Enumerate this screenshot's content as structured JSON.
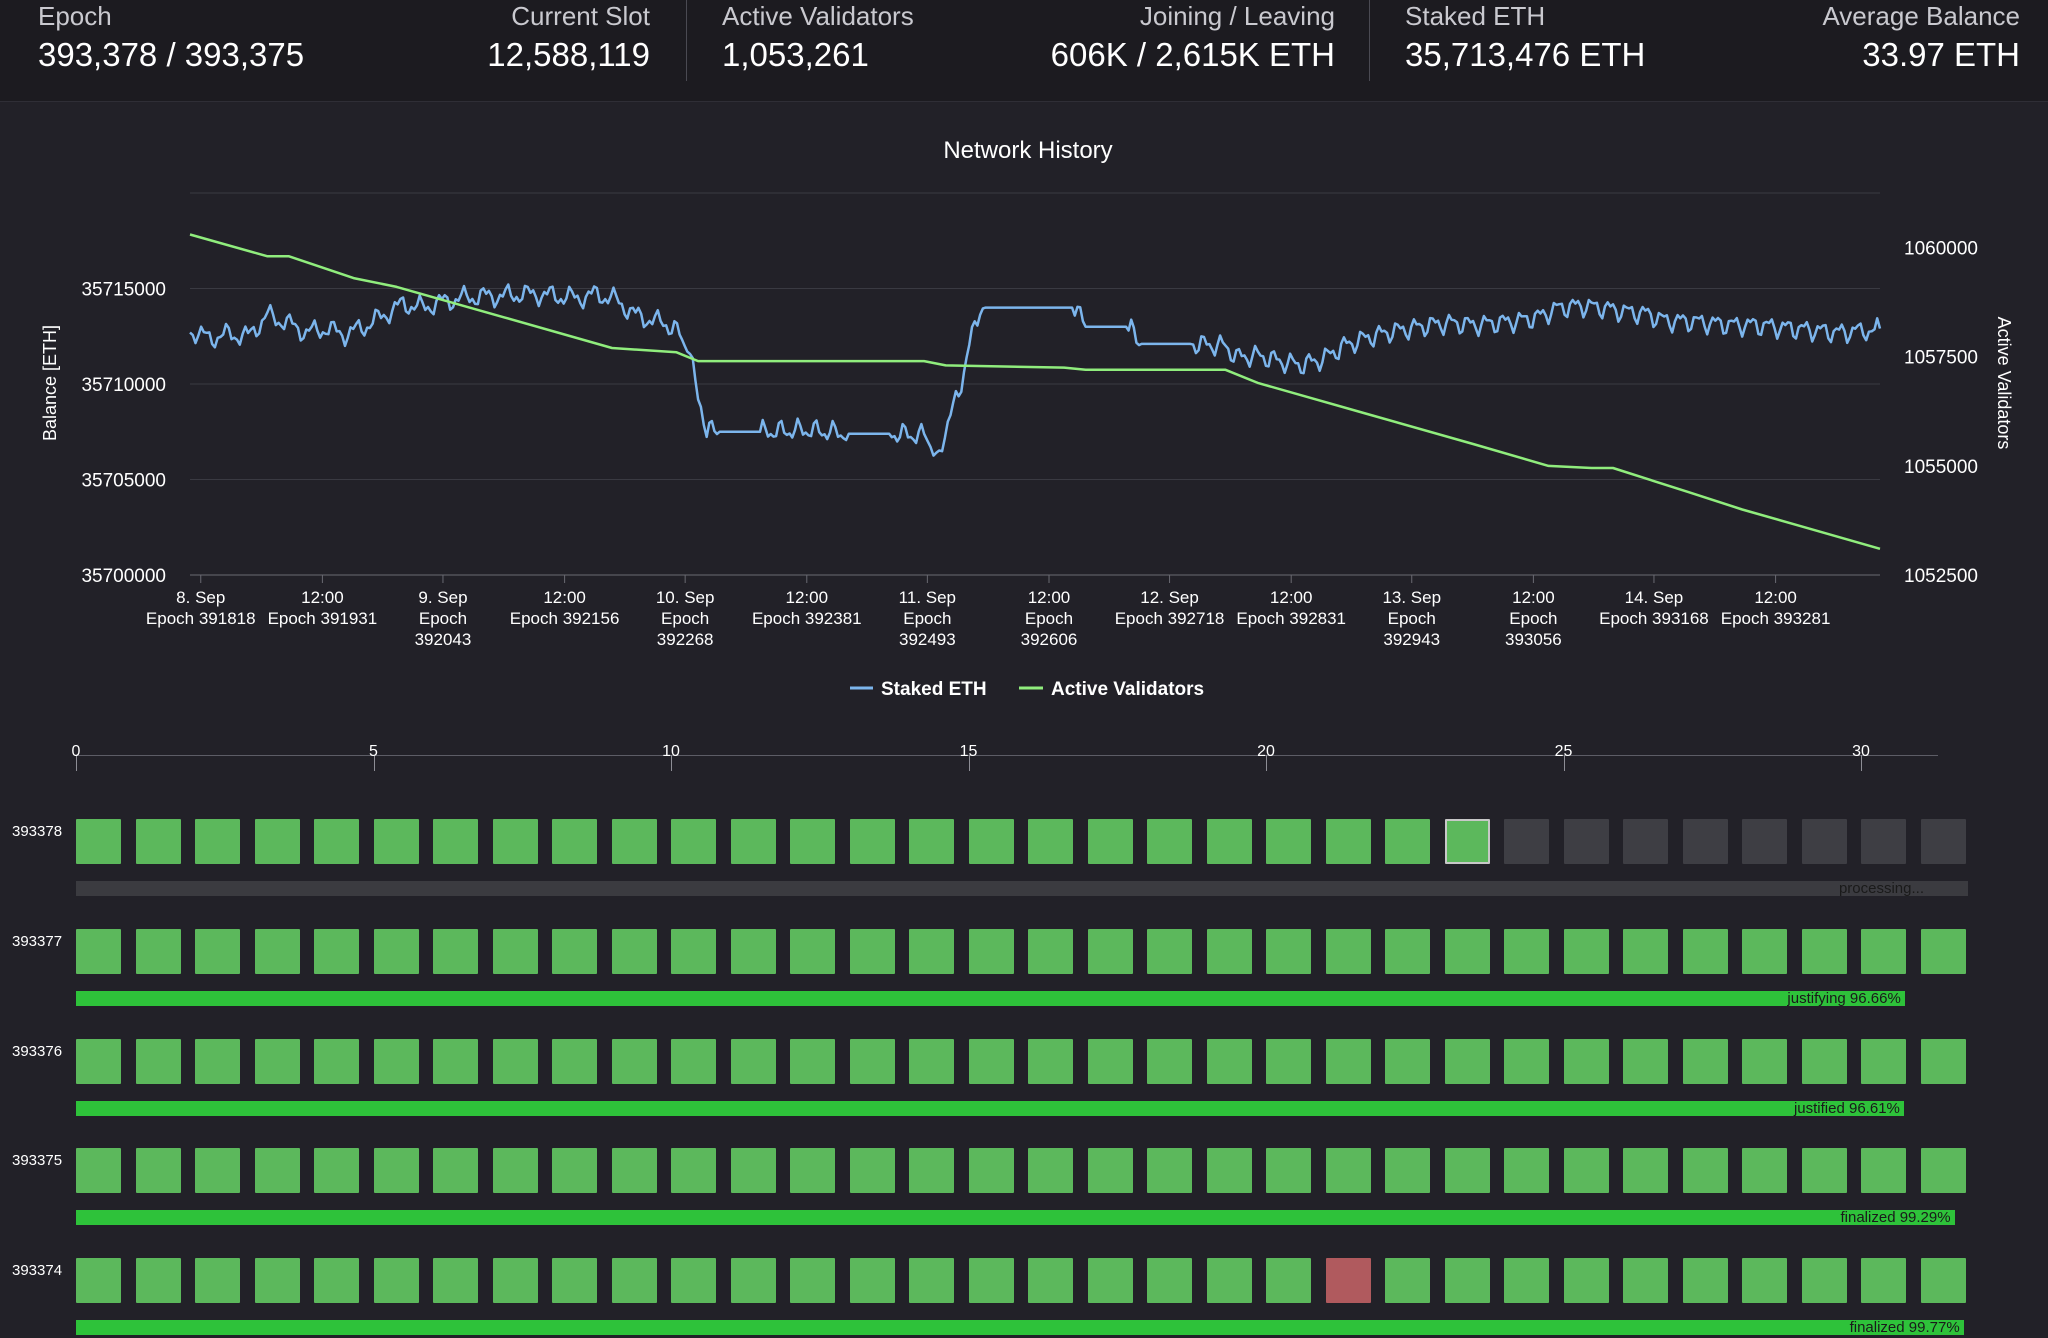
{
  "stats": {
    "epoch": {
      "label": "Epoch",
      "value": "393,378 / 393,375"
    },
    "current_slot": {
      "label": "Current Slot",
      "value": "12,588,119"
    },
    "active_validators": {
      "label": "Active Validators",
      "value": "1,053,261"
    },
    "joining_leaving": {
      "label": "Joining / Leaving",
      "value": "606K / 2,615K ETH"
    },
    "staked_eth": {
      "label": "Staked ETH",
      "value": "35,713,476 ETH"
    },
    "average_balance": {
      "label": "Average Balance",
      "value": "33.97 ETH"
    }
  },
  "chart_data": {
    "type": "line",
    "title": "Network History",
    "ylabel_left": "Balance [ETH]",
    "ylabel_right": "Active Validators",
    "ylim_left": [
      35700000,
      35720000
    ],
    "ylim_right": [
      1052500,
      1061250
    ],
    "yticks_left": [
      "35700000",
      "35705000",
      "35710000",
      "35715000"
    ],
    "yticks_right": [
      "1052500",
      "1055000",
      "1057500",
      "1060000"
    ],
    "xlim_epoch": [
      391808,
      393378
    ],
    "xticks": [
      {
        "epoch": 391818,
        "lines": [
          "8. Sep",
          "Epoch 391818"
        ]
      },
      {
        "epoch": 391931,
        "lines": [
          "12:00",
          "Epoch 391931"
        ]
      },
      {
        "epoch": 392043,
        "lines": [
          "9. Sep",
          "Epoch",
          "392043"
        ]
      },
      {
        "epoch": 392156,
        "lines": [
          "12:00",
          "Epoch 392156"
        ]
      },
      {
        "epoch": 392268,
        "lines": [
          "10. Sep",
          "Epoch",
          "392268"
        ]
      },
      {
        "epoch": 392381,
        "lines": [
          "12:00",
          "Epoch 392381"
        ]
      },
      {
        "epoch": 392493,
        "lines": [
          "11. Sep",
          "Epoch",
          "392493"
        ]
      },
      {
        "epoch": 392606,
        "lines": [
          "12:00",
          "Epoch",
          "392606"
        ]
      },
      {
        "epoch": 392718,
        "lines": [
          "12. Sep",
          "Epoch 392718"
        ]
      },
      {
        "epoch": 392831,
        "lines": [
          "12:00",
          "Epoch 392831"
        ]
      },
      {
        "epoch": 392943,
        "lines": [
          "13. Sep",
          "Epoch",
          "392943"
        ]
      },
      {
        "epoch": 393056,
        "lines": [
          "12:00",
          "Epoch",
          "393056"
        ]
      },
      {
        "epoch": 393168,
        "lines": [
          "14. Sep",
          "Epoch 393168"
        ]
      },
      {
        "epoch": 393281,
        "lines": [
          "12:00",
          "Epoch 393281"
        ]
      }
    ],
    "grid": true,
    "legend_position": "bottom-center",
    "series": [
      {
        "name": "Staked ETH",
        "axis": "left",
        "color": "#7cb5ec",
        "points": [
          [
            391808,
            35712800
          ],
          [
            391826,
            35712400
          ],
          [
            391844,
            35712600
          ],
          [
            391862,
            35712500
          ],
          [
            391880,
            35713600
          ],
          [
            391898,
            35713200
          ],
          [
            391916,
            35712700
          ],
          [
            391934,
            35712900
          ],
          [
            391952,
            35712600
          ],
          [
            391970,
            35713000
          ],
          [
            391988,
            35713600
          ],
          [
            392006,
            35714200
          ],
          [
            392024,
            35714000
          ],
          [
            392042,
            35714300
          ],
          [
            392060,
            35714500
          ],
          [
            392078,
            35714600
          ],
          [
            392096,
            35714600
          ],
          [
            392114,
            35714700
          ],
          [
            392132,
            35714700
          ],
          [
            392150,
            35714600
          ],
          [
            392168,
            35714500
          ],
          [
            392186,
            35714700
          ],
          [
            392204,
            35714400
          ],
          [
            392222,
            35713600
          ],
          [
            392240,
            35713300
          ],
          [
            392258,
            35713000
          ],
          [
            392270,
            35712000
          ],
          [
            392280,
            35709500
          ],
          [
            392288,
            35707700
          ],
          [
            392300,
            35707500
          ],
          [
            392340,
            35707500
          ],
          [
            392380,
            35707600
          ],
          [
            392420,
            35707400
          ],
          [
            392460,
            35707400
          ],
          [
            392490,
            35707300
          ],
          [
            392496,
            35706200
          ],
          [
            392504,
            35706600
          ],
          [
            392512,
            35708000
          ],
          [
            392522,
            35709500
          ],
          [
            392532,
            35712000
          ],
          [
            392542,
            35714000
          ],
          [
            392560,
            35714000
          ],
          [
            392600,
            35714000
          ],
          [
            392630,
            35714000
          ],
          [
            392640,
            35713000
          ],
          [
            392680,
            35713000
          ],
          [
            392692,
            35712100
          ],
          [
            392740,
            35712100
          ],
          [
            392770,
            35712000
          ],
          [
            392780,
            35711400
          ],
          [
            392800,
            35711500
          ],
          [
            392820,
            35711200
          ],
          [
            392840,
            35711000
          ],
          [
            392860,
            35711300
          ],
          [
            392880,
            35712000
          ],
          [
            392900,
            35712400
          ],
          [
            392920,
            35712700
          ],
          [
            392940,
            35712900
          ],
          [
            392960,
            35713100
          ],
          [
            392980,
            35713200
          ],
          [
            393000,
            35713100
          ],
          [
            393020,
            35713200
          ],
          [
            393040,
            35713300
          ],
          [
            393060,
            35713500
          ],
          [
            393080,
            35714000
          ],
          [
            393100,
            35714100
          ],
          [
            393120,
            35714000
          ],
          [
            393140,
            35713800
          ],
          [
            393160,
            35713700
          ],
          [
            393180,
            35713300
          ],
          [
            393200,
            35713300
          ],
          [
            393220,
            35713200
          ],
          [
            393240,
            35713100
          ],
          [
            393260,
            35713100
          ],
          [
            393280,
            35713000
          ],
          [
            393300,
            35712900
          ],
          [
            393320,
            35712800
          ],
          [
            393340,
            35712700
          ],
          [
            393360,
            35712800
          ],
          [
            393378,
            35712900
          ]
        ]
      },
      {
        "name": "Active Validators",
        "axis": "right",
        "color": "#90ed7d",
        "points": [
          [
            391808,
            1060300
          ],
          [
            391880,
            1059800
          ],
          [
            391900,
            1059800
          ],
          [
            391960,
            1059300
          ],
          [
            392000,
            1059100
          ],
          [
            392100,
            1058400
          ],
          [
            392200,
            1057700
          ],
          [
            392260,
            1057600
          ],
          [
            392280,
            1057400
          ],
          [
            392300,
            1057400
          ],
          [
            392490,
            1057400
          ],
          [
            392510,
            1057300
          ],
          [
            392620,
            1057250
          ],
          [
            392640,
            1057200
          ],
          [
            392700,
            1057200
          ],
          [
            392770,
            1057200
          ],
          [
            392800,
            1056900
          ],
          [
            392900,
            1056200
          ],
          [
            393000,
            1055500
          ],
          [
            393070,
            1055000
          ],
          [
            393110,
            1054950
          ],
          [
            393130,
            1054950
          ],
          [
            393200,
            1054400
          ],
          [
            393250,
            1054000
          ],
          [
            393300,
            1053650
          ],
          [
            393378,
            1053100
          ]
        ]
      }
    ]
  },
  "slot_axis": {
    "ticks": [
      "0",
      "5",
      "10",
      "15",
      "20",
      "25",
      "30"
    ]
  },
  "epochs": [
    {
      "epoch": "393378",
      "status_text": "processing...",
      "progress": 0,
      "slots": [
        "p",
        "p",
        "p",
        "p",
        "p",
        "p",
        "p",
        "p",
        "p",
        "p",
        "p",
        "p",
        "p",
        "p",
        "p",
        "p",
        "p",
        "p",
        "p",
        "p",
        "p",
        "p",
        "p",
        "c",
        "s",
        "s",
        "s",
        "s",
        "s",
        "s",
        "s",
        "s"
      ]
    },
    {
      "epoch": "393377",
      "status_text": "justifying 96.66%",
      "progress": 96.66,
      "slots": [
        "p",
        "p",
        "p",
        "p",
        "p",
        "p",
        "p",
        "p",
        "p",
        "p",
        "p",
        "p",
        "p",
        "p",
        "p",
        "p",
        "p",
        "p",
        "p",
        "p",
        "p",
        "p",
        "p",
        "p",
        "p",
        "p",
        "p",
        "p",
        "p",
        "p",
        "p",
        "p"
      ]
    },
    {
      "epoch": "393376",
      "status_text": "justified 96.61%",
      "progress": 96.61,
      "slots": [
        "p",
        "p",
        "p",
        "p",
        "p",
        "p",
        "p",
        "p",
        "p",
        "p",
        "p",
        "p",
        "p",
        "p",
        "p",
        "p",
        "p",
        "p",
        "p",
        "p",
        "p",
        "p",
        "p",
        "p",
        "p",
        "p",
        "p",
        "p",
        "p",
        "p",
        "p",
        "p"
      ]
    },
    {
      "epoch": "393375",
      "status_text": "finalized 99.29%",
      "progress": 99.29,
      "slots": [
        "p",
        "p",
        "p",
        "p",
        "p",
        "p",
        "p",
        "p",
        "p",
        "p",
        "p",
        "p",
        "p",
        "p",
        "p",
        "p",
        "p",
        "p",
        "p",
        "p",
        "p",
        "p",
        "p",
        "p",
        "p",
        "p",
        "p",
        "p",
        "p",
        "p",
        "p",
        "p"
      ]
    },
    {
      "epoch": "393374",
      "status_text": "finalized 99.77%",
      "progress": 99.77,
      "slots": [
        "p",
        "p",
        "p",
        "p",
        "p",
        "p",
        "p",
        "p",
        "p",
        "p",
        "p",
        "p",
        "p",
        "p",
        "p",
        "p",
        "p",
        "p",
        "p",
        "p",
        "p",
        "m",
        "p",
        "p",
        "p",
        "p",
        "p",
        "p",
        "p",
        "p",
        "p",
        "p"
      ]
    }
  ],
  "colors": {
    "proposed": "#5cb85c",
    "missed": "#b05a5e",
    "scheduled": "#3e3e44",
    "attestation_bar": "#2ec23a"
  }
}
